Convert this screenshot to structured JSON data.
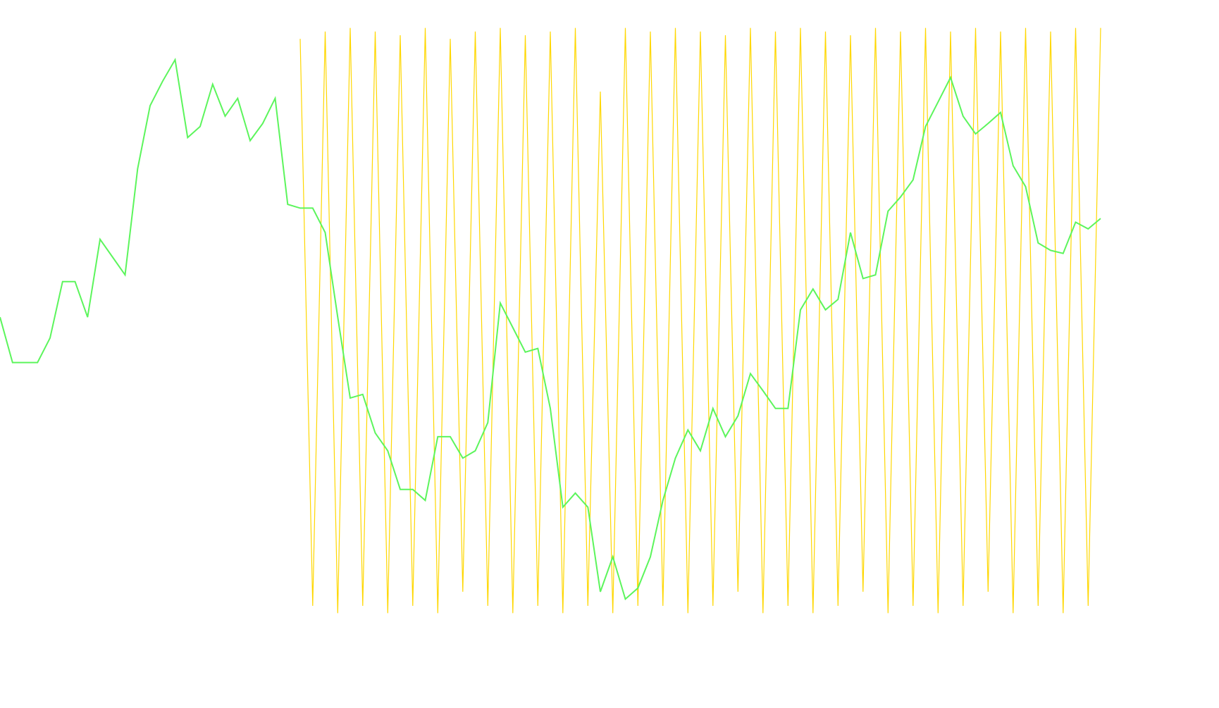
{
  "chart_data": {
    "type": "line",
    "x": [
      0,
      1,
      2,
      3,
      4,
      5,
      6,
      7,
      8,
      9,
      10,
      11,
      12,
      13,
      14,
      15,
      16,
      17,
      18,
      19,
      20,
      21,
      22,
      23,
      24,
      25,
      26,
      27,
      28,
      29,
      30,
      31,
      32,
      33,
      34,
      35,
      36,
      37,
      38,
      39,
      40,
      41,
      42,
      43,
      44,
      45,
      46,
      47,
      48,
      49,
      50,
      51,
      52,
      53,
      54,
      55,
      56,
      57,
      58,
      59,
      60,
      61,
      62,
      63,
      64,
      65,
      66,
      67,
      68,
      69,
      70,
      71,
      72,
      73,
      74,
      75,
      76,
      77,
      78,
      79,
      80,
      81,
      82,
      83,
      84,
      85,
      86,
      87,
      88
    ],
    "xlim": [
      0,
      88
    ],
    "ylim": [
      0,
      100
    ],
    "series": [
      {
        "color": "#ffd700",
        "values": [
          null,
          null,
          null,
          null,
          null,
          null,
          null,
          null,
          null,
          null,
          null,
          null,
          null,
          null,
          null,
          null,
          null,
          null,
          null,
          null,
          null,
          null,
          null,
          null,
          97.1,
          4.6,
          98.3,
          3.4,
          98.9,
          4.6,
          98.3,
          3.4,
          97.7,
          4.6,
          98.9,
          3.4,
          97.1,
          6.9,
          98.3,
          4.6,
          98.9,
          3.4,
          97.7,
          4.6,
          98.3,
          3.4,
          98.9,
          4.6,
          88.5,
          3.4,
          98.9,
          4.6,
          98.3,
          4.6,
          98.9,
          3.4,
          98.3,
          4.6,
          97.7,
          6.9,
          98.9,
          3.4,
          98.3,
          4.6,
          98.9,
          3.4,
          98.3,
          4.6,
          97.7,
          6.9,
          98.9,
          3.4,
          98.3,
          4.6,
          98.9,
          3.4,
          98.3,
          4.6,
          98.9,
          6.9,
          98.3,
          3.4,
          98.9,
          4.6,
          98.3,
          3.4,
          98.9,
          4.6,
          98.9
        ]
      },
      {
        "color": "#5cf55c",
        "values": [
          51.7,
          44.3,
          44.3,
          44.3,
          48.3,
          57.5,
          57.5,
          51.7,
          64.4,
          61.5,
          58.6,
          75.9,
          86.2,
          90.2,
          93.7,
          81.0,
          82.8,
          89.7,
          84.5,
          87.4,
          80.5,
          83.3,
          87.4,
          70.1,
          69.5,
          69.5,
          65.5,
          51.7,
          38.5,
          39.1,
          32.8,
          29.9,
          23.6,
          23.6,
          21.8,
          32.2,
          32.2,
          28.7,
          29.9,
          34.5,
          54.0,
          50.0,
          46.0,
          46.6,
          36.8,
          20.7,
          23.0,
          20.7,
          6.9,
          12.6,
          5.7,
          7.5,
          12.6,
          21.8,
          28.7,
          33.3,
          29.9,
          36.8,
          32.2,
          35.6,
          42.5,
          39.7,
          36.8,
          36.8,
          52.9,
          56.3,
          52.9,
          54.6,
          65.5,
          58.0,
          58.6,
          69.0,
          71.3,
          74.1,
          82.8,
          86.8,
          90.8,
          84.5,
          81.6,
          83.3,
          85.1,
          76.4,
          73.0,
          63.8,
          62.6,
          62.1,
          67.2,
          66.1,
          67.8
        ]
      }
    ]
  }
}
